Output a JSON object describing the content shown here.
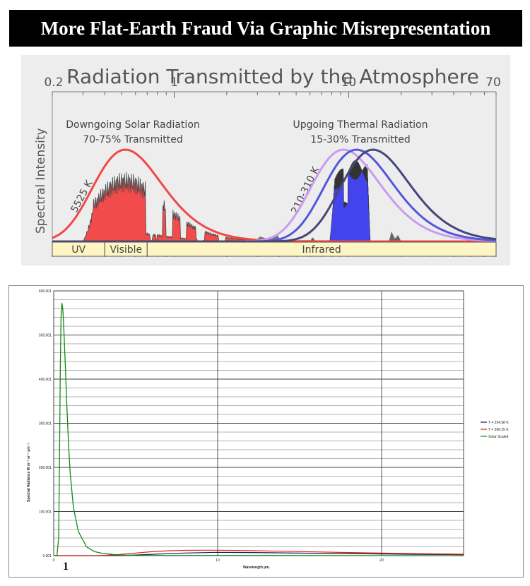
{
  "banner": {
    "title": "More Flat-Earth Fraud Via Graphic Misrepresentation"
  },
  "colors": {
    "solar": "#f04848",
    "solar_fill": "#f24b4b",
    "thermal_fill": "#4444ee",
    "thermal_dark": "#46467a",
    "thermal_mid": "#5555dd",
    "thermal_light": "#c99cf0",
    "band_fill": "#fdf6c4",
    "green": "#128a12",
    "red": "#e02020",
    "navy": "#1a1a5a"
  },
  "chart_data": [
    {
      "type": "area",
      "title": "Radiation Transmitted by the Atmosphere",
      "ylabel": "Spectral Intensity",
      "x_scale": "log",
      "xlim": [
        0.2,
        70
      ],
      "x_ticks": [
        "0.2",
        "1",
        "10",
        "70"
      ],
      "annotations": {
        "solar_heading": "Downgoing Solar Radiation",
        "solar_percent": "70-75% Transmitted",
        "thermal_heading": "Upgoing Thermal Radiation",
        "thermal_percent": "15-30% Transmitted",
        "solar_curve_label": "5525 K",
        "thermal_curve_label": "210-310 K"
      },
      "bands": [
        {
          "label": "UV",
          "from": 0.2,
          "to": 0.4
        },
        {
          "label": "Visible",
          "from": 0.4,
          "to": 0.7
        },
        {
          "label": "Infrared",
          "from": 0.7,
          "to": 70
        }
      ],
      "series": [
        {
          "kind": "blackbody",
          "temperature_K": 5525,
          "peak_um": 0.525
        },
        {
          "kind": "blackbody",
          "temperature_K": 310,
          "peak_um": 9.35
        },
        {
          "kind": "blackbody",
          "temperature_K": 260,
          "peak_um": 11.1
        },
        {
          "kind": "blackbody",
          "temperature_K": 210,
          "peak_um": 13.8
        }
      ]
    },
    {
      "type": "line",
      "title": "",
      "xlabel": "Wavelength µm.",
      "ylabel": "Spectral Radiance W m⁻² sr⁻¹ µm⁻¹.",
      "xlim": [
        0,
        25
      ],
      "ylim": [
        0.001,
        600.001
      ],
      "x_ticks": [
        "0",
        "10",
        "20"
      ],
      "y_ticks": [
        "0.001",
        "100.001",
        "200.001",
        "300.001",
        "400.001",
        "500.001",
        "600.001"
      ],
      "extra_x_label": "1",
      "legend_position": "right",
      "series": [
        {
          "name": "T = 254.98 K",
          "color": "navy",
          "x": [
            0,
            2,
            3,
            4,
            5,
            6,
            8,
            10,
            12,
            14,
            16,
            18,
            20,
            22,
            25
          ],
          "y": [
            0,
            0,
            0,
            0.5,
            1.5,
            3,
            6,
            7.5,
            7,
            6.3,
            5.4,
            4.6,
            3.8,
            3.1,
            2.2
          ]
        },
        {
          "name": "T = 308.25 K",
          "color": "red",
          "x": [
            0,
            2,
            3,
            4,
            5,
            6,
            7,
            8,
            9,
            10,
            12,
            14,
            16,
            18,
            20,
            22,
            25
          ],
          "y": [
            0,
            0,
            0.5,
            2.5,
            6,
            9,
            11,
            12,
            12.4,
            12.3,
            11.4,
            10,
            8.5,
            7,
            5.8,
            4.6,
            3.2
          ]
        },
        {
          "name": "Solar Scaled",
          "color": "green",
          "x": [
            0,
            0.2,
            0.3,
            0.35,
            0.4,
            0.45,
            0.5,
            0.55,
            0.6,
            0.7,
            0.8,
            0.9,
            1.0,
            1.2,
            1.5,
            2,
            2.5,
            3,
            4,
            5,
            25
          ],
          "y": [
            0,
            0,
            40,
            200,
            420,
            540,
            572,
            560,
            530,
            440,
            340,
            255,
            190,
            110,
            55,
            20,
            9,
            5,
            1.5,
            0.5,
            0
          ]
        }
      ]
    }
  ]
}
